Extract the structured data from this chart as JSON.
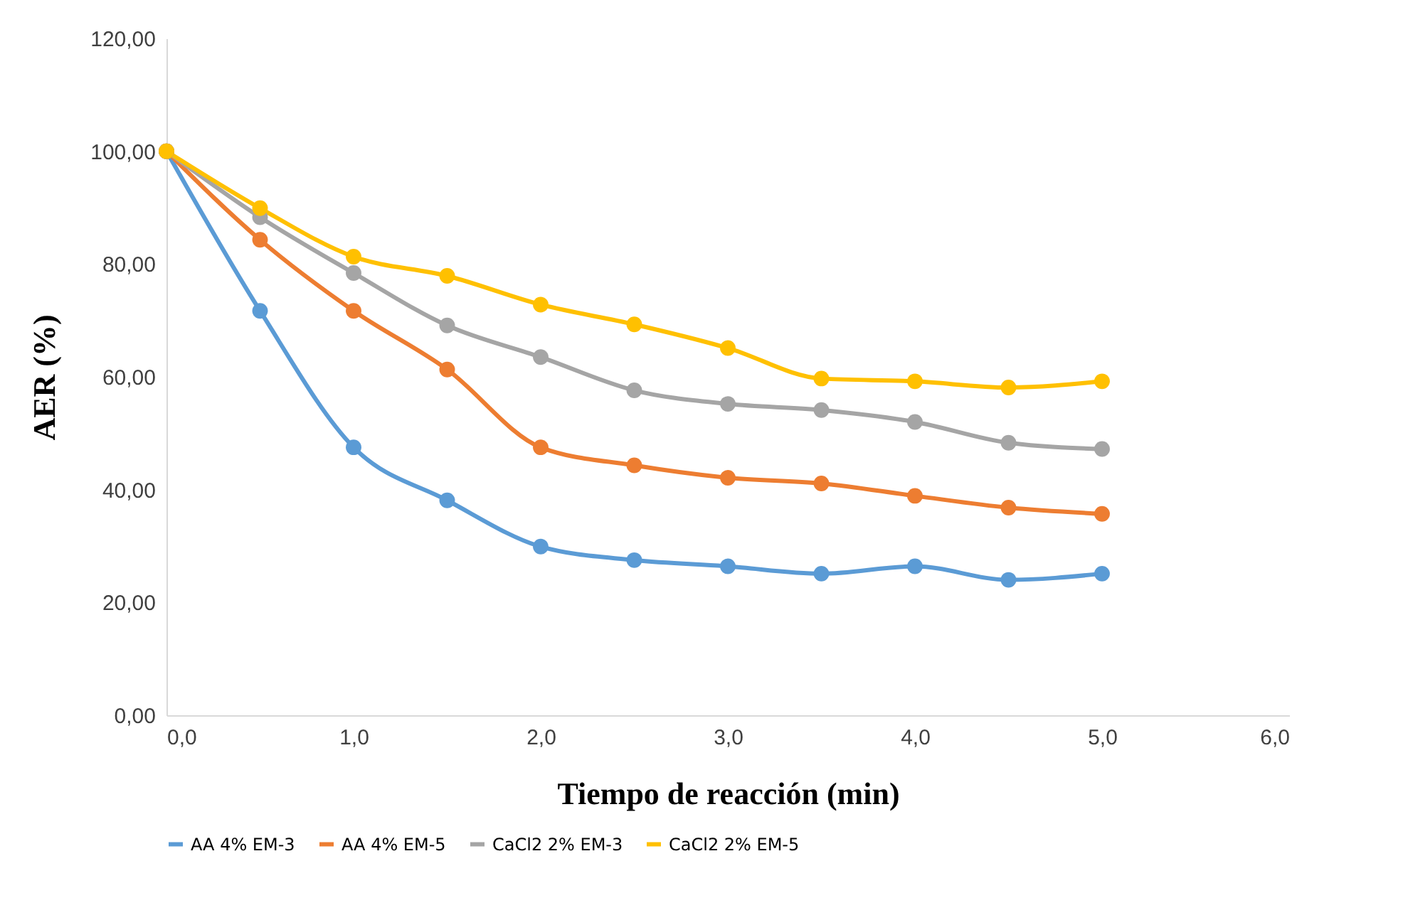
{
  "chart_data": {
    "type": "line",
    "xlabel": "Tiempo de reacción (min)",
    "ylabel": "AER (%)",
    "x": [
      0,
      0.5,
      1,
      1.5,
      2,
      2.5,
      3,
      3.5,
      4,
      4.5,
      5
    ],
    "series": [
      {
        "name": "AA 4% EM-3",
        "color": "#5b9bd5",
        "values": [
          100,
          71.7,
          47.5,
          38.1,
          29.9,
          27.5,
          26.4,
          25.1,
          26.4,
          24.0,
          25.1
        ]
      },
      {
        "name": "AA 4% EM-5",
        "color": "#ed7d31",
        "values": [
          100,
          84.3,
          71.7,
          61.3,
          47.5,
          44.3,
          42.1,
          41.1,
          38.9,
          36.8,
          35.7
        ]
      },
      {
        "name": "CaCl2 2% EM-3",
        "color": "#a5a5a5",
        "values": [
          100,
          88.3,
          78.4,
          69.1,
          63.5,
          57.6,
          55.2,
          54.1,
          52.0,
          48.3,
          47.2
        ]
      },
      {
        "name": "CaCl2 2% EM-5",
        "color": "#ffc000",
        "values": [
          100,
          89.9,
          81.3,
          77.9,
          72.8,
          69.3,
          65.1,
          59.7,
          59.2,
          58.1,
          59.2
        ]
      }
    ],
    "xlim": [
      0,
      6
    ],
    "xticks": [
      {
        "value": 0,
        "label": "0,0"
      },
      {
        "value": 1,
        "label": "1,0"
      },
      {
        "value": 2,
        "label": "2,0"
      },
      {
        "value": 3,
        "label": "3,0"
      },
      {
        "value": 4,
        "label": "4,0"
      },
      {
        "value": 5,
        "label": "5,0"
      },
      {
        "value": 6,
        "label": "6,0"
      }
    ],
    "ylim": [
      0,
      120
    ],
    "yticks": [
      {
        "value": 0,
        "label": "0,00"
      },
      {
        "value": 20,
        "label": "20,00"
      },
      {
        "value": 40,
        "label": "40,00"
      },
      {
        "value": 60,
        "label": "60,00"
      },
      {
        "value": 80,
        "label": "80,00"
      },
      {
        "value": 100,
        "label": "100,00"
      },
      {
        "value": 120,
        "label": "120,00"
      }
    ],
    "grid": false,
    "legend": "bottom",
    "marker": "circle",
    "line_style": "solid"
  }
}
